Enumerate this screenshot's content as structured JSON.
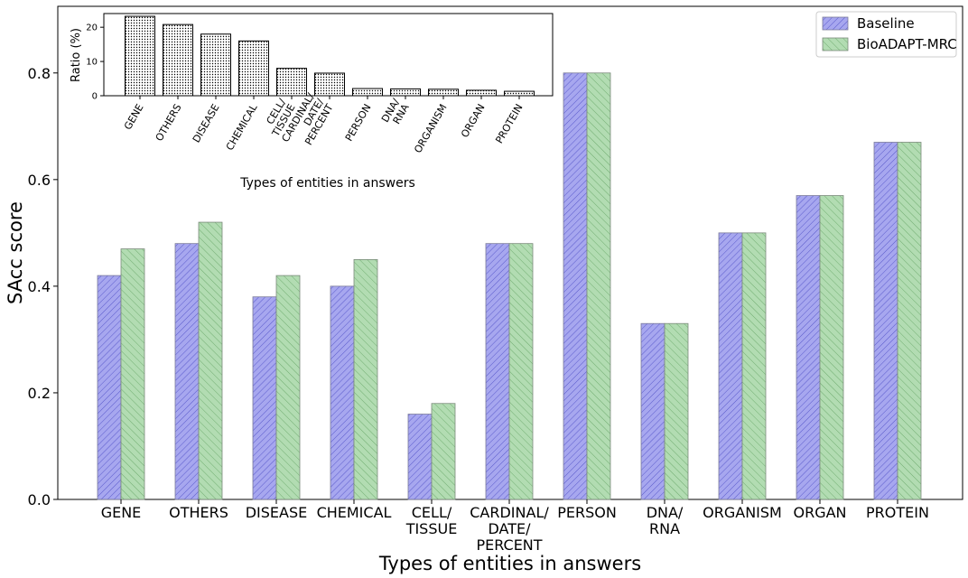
{
  "chart_data": [
    {
      "type": "bar",
      "xlabel": "Types of entities in answers",
      "ylabel": "SAcc score",
      "ylim": [
        0,
        0.925
      ],
      "yticks": [
        "0.0",
        "0.2",
        "0.4",
        "0.6",
        "0.8"
      ],
      "categories": [
        [
          "GENE"
        ],
        [
          "OTHERS"
        ],
        [
          "DISEASE"
        ],
        [
          "CHEMICAL"
        ],
        [
          "CELL/",
          "TISSUE"
        ],
        [
          "CARDINAL/",
          "DATE/",
          "PERCENT"
        ],
        [
          "PERSON"
        ],
        [
          "DNA/",
          "RNA"
        ],
        [
          "ORGANISM"
        ],
        [
          "ORGAN"
        ],
        [
          "PROTEIN"
        ]
      ],
      "series": [
        {
          "name": "Baseline",
          "color": "#a7a7ef",
          "values": [
            0.42,
            0.48,
            0.38,
            0.4,
            0.16,
            0.48,
            0.8,
            0.33,
            0.5,
            0.57,
            0.67
          ]
        },
        {
          "name": "BioADAPT-MRC",
          "color": "#b2dcb2",
          "values": [
            0.47,
            0.52,
            0.42,
            0.45,
            0.18,
            0.48,
            0.8,
            0.33,
            0.5,
            0.57,
            0.67
          ]
        }
      ],
      "legend": "top-right",
      "grid": false
    },
    {
      "type": "bar",
      "xlabel": "Types of entities in answers",
      "ylabel": "Ratio (%)",
      "ylim": [
        0,
        24
      ],
      "yticks": [
        "0",
        "10",
        "20"
      ],
      "categories": [
        [
          "GENE"
        ],
        [
          "OTHERS"
        ],
        [
          "DISEASE"
        ],
        [
          "CHEMICAL"
        ],
        [
          "CELL/",
          "TISSUE"
        ],
        [
          "CARDINAL/",
          "DATE/",
          "PERCENT"
        ],
        [
          "PERSON"
        ],
        [
          "DNA/",
          "RNA"
        ],
        [
          "ORGANISM"
        ],
        [
          "ORGAN"
        ],
        [
          "PROTEIN"
        ]
      ],
      "values": [
        23.2,
        20.8,
        18.0,
        16.0,
        8.0,
        6.6,
        2.1,
        2.0,
        1.9,
        1.6,
        1.3
      ],
      "grid": false
    }
  ]
}
